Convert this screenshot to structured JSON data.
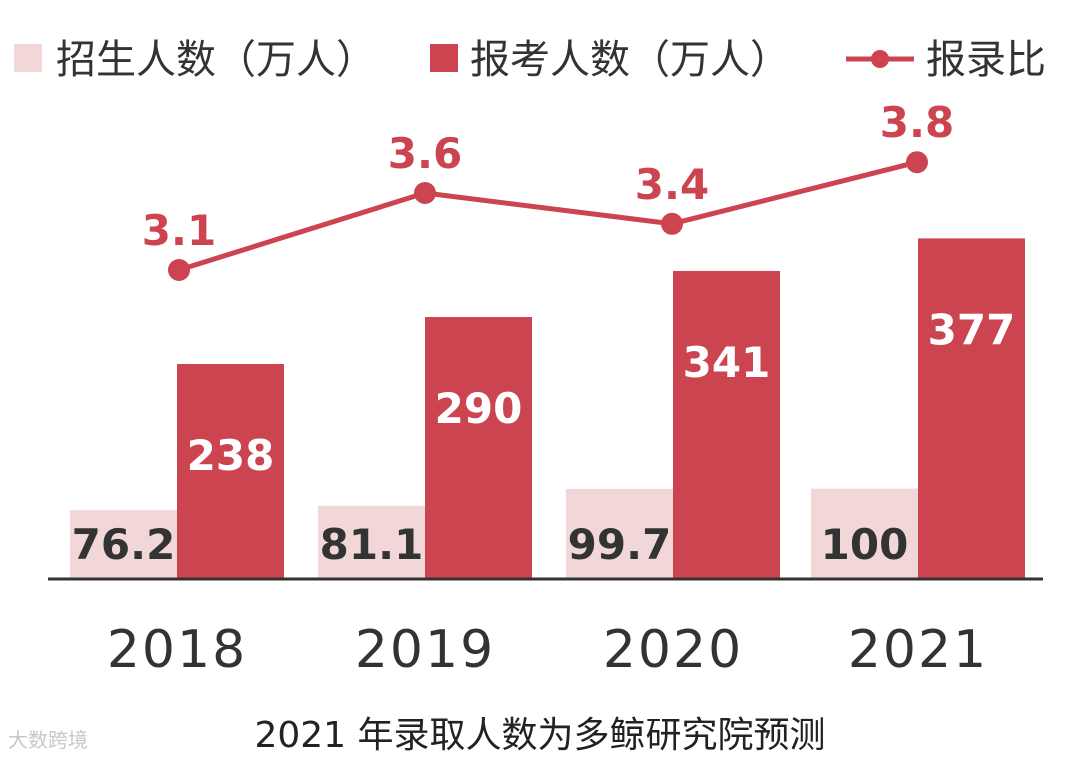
{
  "chart_data": {
    "type": "bar",
    "categories": [
      "2018",
      "2019",
      "2020",
      "2021"
    ],
    "series": [
      {
        "name": "招生人数（万人）",
        "kind": "bar",
        "color": "#f2d7d9",
        "values": [
          76.2,
          81.1,
          99.7,
          100
        ]
      },
      {
        "name": "报考人数（万人）",
        "kind": "bar",
        "color": "#cc4450",
        "values": [
          238,
          290,
          341,
          377
        ]
      },
      {
        "name": "报录比",
        "kind": "line",
        "color": "#cc4450",
        "values": [
          3.1,
          3.6,
          3.4,
          3.8
        ]
      }
    ],
    "bar_label_colors": [
      "#333333",
      "#ffffff"
    ],
    "axis_color": "#333333",
    "legend_position": "top",
    "grid": false
  },
  "footnote": "2021 年录取人数为多鲸研究院预测",
  "watermark": "大数跨境"
}
